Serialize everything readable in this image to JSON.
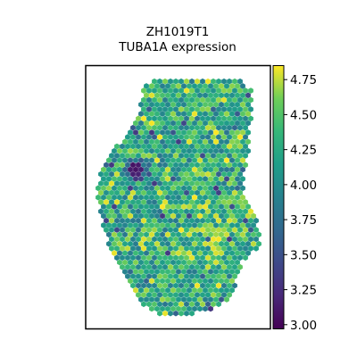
{
  "chart_data": {
    "type": "heatmap",
    "title": "ZH1019T1",
    "subtitle": "TUBA1A expression",
    "xlabel": "",
    "ylabel": "",
    "grid": false,
    "colormap": "viridis",
    "colorbar": {
      "vmin": 2.97,
      "vmax": 4.85,
      "ticks": [
        3.0,
        3.25,
        3.5,
        3.75,
        4.0,
        4.25,
        4.5,
        4.75
      ],
      "tick_labels": [
        "3.00",
        "3.25",
        "3.50",
        "3.75",
        "4.00",
        "4.25",
        "4.50",
        "4.75"
      ]
    },
    "spots": {
      "marker": "hexagon",
      "typical_value": 4.25,
      "value_range": [
        2.97,
        4.85
      ],
      "low_value_cluster": {
        "value": 3.05,
        "location": "left-middle"
      }
    }
  }
}
